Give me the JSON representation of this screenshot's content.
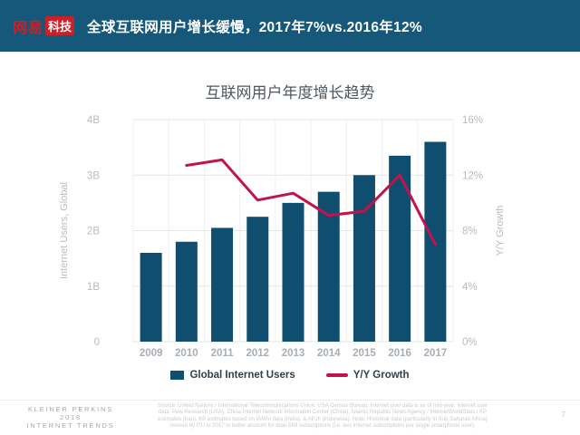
{
  "header": {
    "logo": {
      "brand": "网易",
      "sub": "科技"
    },
    "title": "全球互联网用户增长缓慢，2017年7%vs.2016年12%"
  },
  "colors": {
    "header_bg": "#165879",
    "logo_red": "#cb2027",
    "bar": "#0f4e6e",
    "line": "#c1134e",
    "grid": "#e4e6e8",
    "grid_vertical": "#eff1f2",
    "axis_text": "#b7bcc0",
    "year_text": "#a8aeb4"
  },
  "chart_data": {
    "type": "bar",
    "title": "互联网用户年度增长趋势",
    "categories": [
      "2009",
      "2010",
      "2011",
      "2012",
      "2013",
      "2014",
      "2015",
      "2016",
      "2017"
    ],
    "series": [
      {
        "name": "Global Internet Users",
        "type": "bar",
        "axis": "left",
        "unit": "billions",
        "color": "#0f4e6e",
        "values": [
          1.6,
          1.8,
          2.05,
          2.25,
          2.5,
          2.7,
          3.0,
          3.35,
          3.6
        ]
      },
      {
        "name": "Y/Y Growth",
        "type": "line",
        "axis": "right",
        "unit": "percent",
        "color": "#c1134e",
        "values": [
          null,
          12.7,
          13.1,
          10.2,
          10.7,
          9.1,
          9.4,
          12.0,
          7.0
        ]
      }
    ],
    "left_axis": {
      "label": "Internet Users, Global",
      "ticks": [
        "0",
        "1B",
        "2B",
        "3B",
        "4B"
      ],
      "min": 0,
      "max": 4
    },
    "right_axis": {
      "label": "Y/Y Growth",
      "ticks": [
        "0%",
        "4%",
        "8%",
        "12%",
        "16%"
      ],
      "min": 0,
      "max": 16
    },
    "legend_position": "bottom",
    "grid": true
  },
  "footer": {
    "brand_lines": [
      "KLEINER PERKINS",
      "2018",
      "INTERNET TRENDS"
    ],
    "source_lines": [
      "Source: United Nations / International Telecommunications Union, USA Census Bureau. Internet user data is as of mid-year. Internet user",
      "data: Pew Research (USA), China Internet Network Information Center (China), Islamic Republic News Agency / InternetWorldStats / KP",
      "estimates (Iran). KP estimates based on IAMAI data (India), & APJII (Indonesia).  Note: Historical data (particularly in Sub-Saharan Africa)",
      "revised by ITU in 2017 to better account for dual-SIM subscriptions (i.e. two Internet subscriptions per single smartphone user)."
    ],
    "page_number": "7"
  }
}
